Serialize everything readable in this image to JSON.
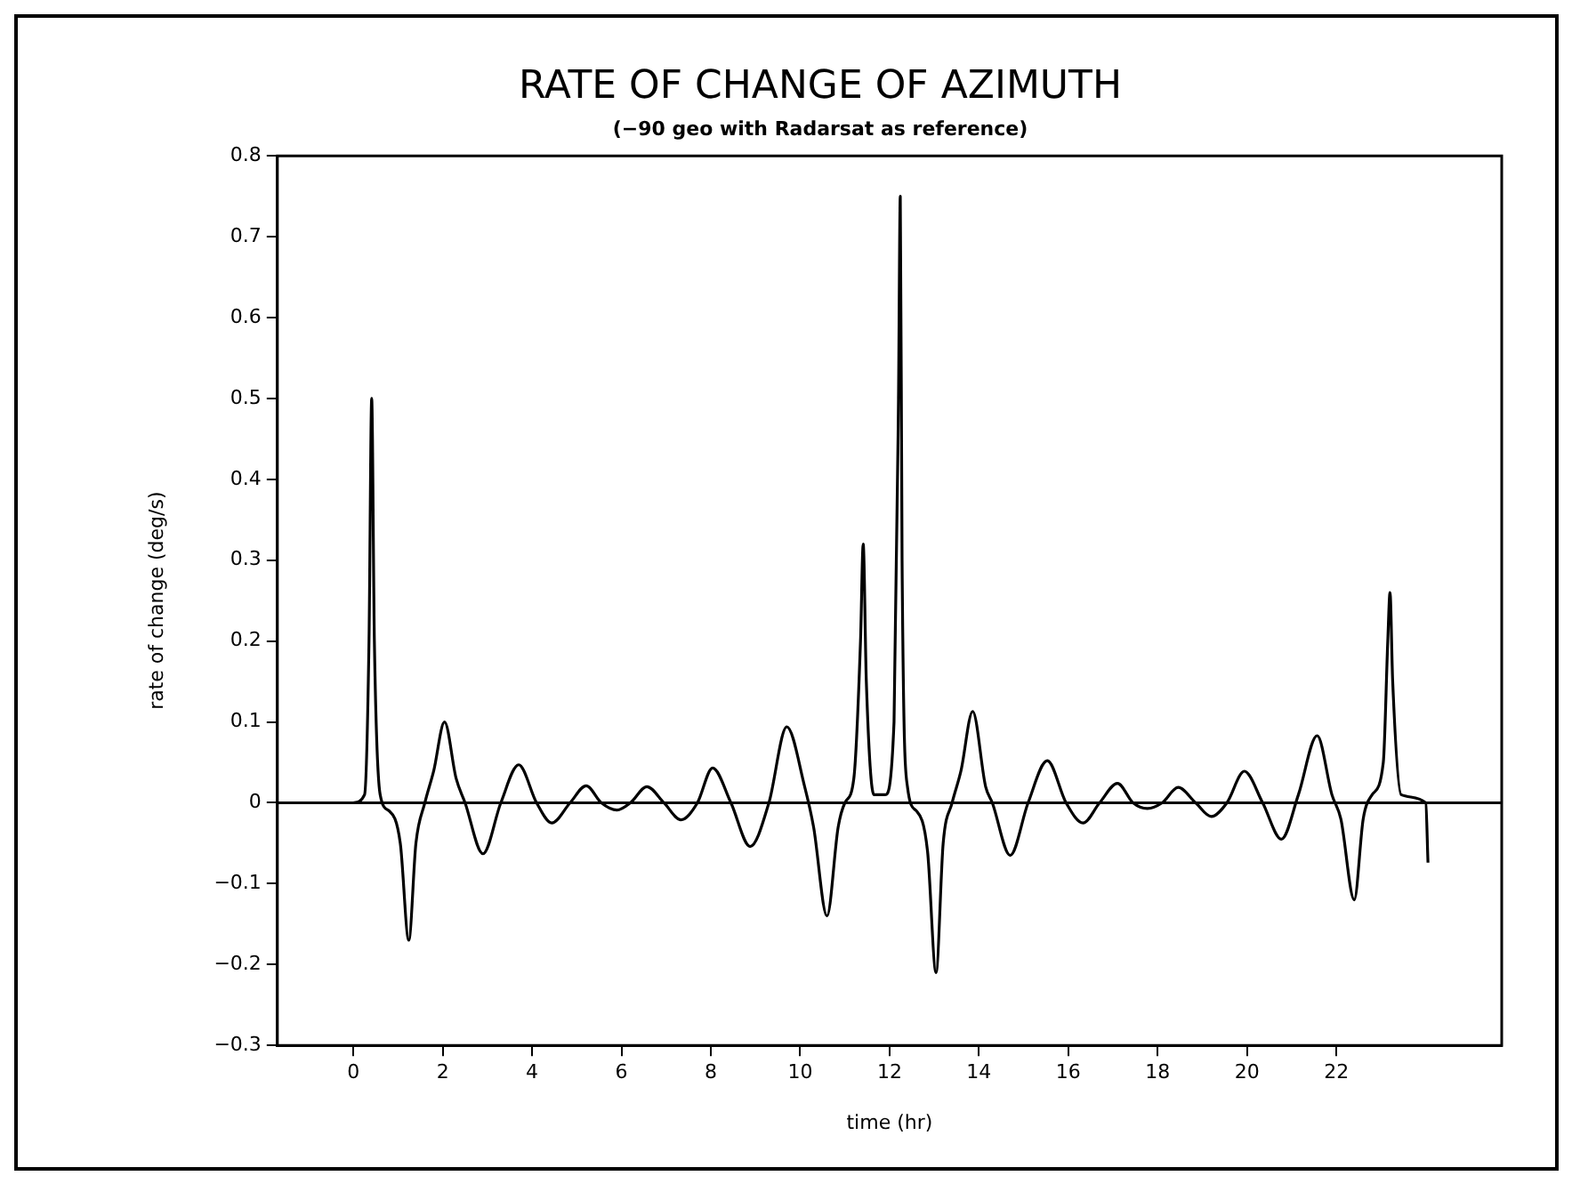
{
  "chart_data": {
    "type": "line",
    "title": "RATE OF CHANGE OF AZIMUTH",
    "subtitle": "(−90 geo with Radarsat as reference)",
    "xlabel": "time (hr)",
    "ylabel": "rate of change (deg/s)",
    "xlim": [
      -1.7,
      25.7
    ],
    "xticks": [
      0,
      2,
      4,
      6,
      8,
      10,
      12,
      14,
      16,
      18,
      20,
      22
    ],
    "ylim": [
      -0.3,
      0.8
    ],
    "yticks": [
      -0.3,
      -0.2,
      -0.1,
      0,
      0.1,
      0.2,
      0.3,
      0.4,
      0.5,
      0.6,
      0.7,
      0.8
    ],
    "grid": false,
    "legend": false,
    "marker": "none",
    "line_style": "solid",
    "ref_lines": [
      {
        "axis": "y",
        "value": 0,
        "color": "#000000"
      }
    ],
    "series": [
      {
        "color": "#000000",
        "x": [
          0,
          0.25,
          0.35,
          0.41,
          0.47,
          0.6,
          0.8,
          1.05,
          1.24,
          1.4,
          1.6,
          1.8,
          2.04,
          2.3,
          2.5,
          2.9,
          3.3,
          3.7,
          4.1,
          4.44,
          4.85,
          5.21,
          5.55,
          5.9,
          6.2,
          6.57,
          6.95,
          7.33,
          7.7,
          8.04,
          8.45,
          8.88,
          9.3,
          9.7,
          10.1,
          10.3,
          10.6,
          10.85,
          11.0,
          11.2,
          11.35,
          11.41,
          11.48,
          11.65,
          11.9,
          12.1,
          12.2,
          12.24,
          12.28,
          12.4,
          12.6,
          12.85,
          13.04,
          13.2,
          13.4,
          13.6,
          13.86,
          14.15,
          14.3,
          14.7,
          15.1,
          15.53,
          15.95,
          16.33,
          16.7,
          17.1,
          17.45,
          17.77,
          18.1,
          18.46,
          18.85,
          19.2,
          19.55,
          19.94,
          20.35,
          20.77,
          21.15,
          21.57,
          21.9,
          22.1,
          22.4,
          22.6,
          22.8,
          23.05,
          23.15,
          23.2,
          23.26,
          23.45,
          24.0,
          24.05
        ],
        "values": [
          0,
          0.01,
          0.2,
          0.5,
          0.2,
          0.01,
          -0.01,
          -0.05,
          -0.17,
          -0.05,
          0,
          0.04,
          0.1,
          0.03,
          0,
          -0.063,
          0,
          0.047,
          0,
          -0.025,
          0,
          0.021,
          0,
          -0.009,
          0,
          0.02,
          0,
          -0.021,
          0,
          0.043,
          0,
          -0.054,
          0,
          0.094,
          0.02,
          -0.03,
          -0.14,
          -0.03,
          0,
          0.03,
          0.2,
          0.32,
          0.15,
          0.01,
          0.01,
          0.1,
          0.5,
          0.75,
          0.3,
          0.02,
          -0.01,
          -0.06,
          -0.21,
          -0.05,
          0,
          0.04,
          0.113,
          0.02,
          0,
          -0.065,
          0,
          0.052,
          0,
          -0.025,
          0,
          0.024,
          0,
          -0.007,
          0,
          0.019,
          0,
          -0.017,
          0,
          0.039,
          0,
          -0.045,
          0.01,
          0.083,
          0.01,
          -0.02,
          -0.12,
          -0.02,
          0.01,
          0.05,
          0.2,
          0.26,
          0.15,
          0.01,
          0,
          -0.074
        ]
      }
    ]
  }
}
